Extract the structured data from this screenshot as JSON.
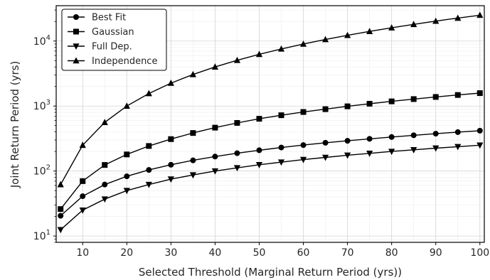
{
  "chart_data": {
    "type": "line",
    "xlabel": "Selected Threshold (Marginal Return Period (yrs))",
    "ylabel": "Joint Return Period (yrs)",
    "x": [
      5,
      10,
      15,
      20,
      25,
      30,
      35,
      40,
      45,
      50,
      55,
      60,
      65,
      70,
      75,
      80,
      85,
      90,
      95,
      100
    ],
    "xlim": [
      4,
      101
    ],
    "ylim": [
      8,
      35000
    ],
    "yscale": "log",
    "xticks": [
      10,
      20,
      30,
      40,
      50,
      60,
      70,
      80,
      90,
      100
    ],
    "yticks": [
      {
        "value": 10,
        "base": "10",
        "exp": "1"
      },
      {
        "value": 100,
        "base": "10",
        "exp": "2"
      },
      {
        "value": 1000,
        "base": "10",
        "exp": "3"
      },
      {
        "value": 10000,
        "base": "10",
        "exp": "4"
      }
    ],
    "grid": true,
    "legend": "top-left",
    "series": [
      {
        "name": "Best Fit",
        "marker": "circle",
        "values": [
          20.5,
          41,
          62,
          83,
          104,
          125,
          146,
          167,
          188,
          209,
          230,
          251,
          272,
          292,
          313,
          334,
          355,
          376,
          397,
          418
        ]
      },
      {
        "name": "Gaussian",
        "marker": "square",
        "values": [
          26,
          70,
          124,
          180,
          243,
          310,
          385,
          465,
          550,
          637,
          722,
          810,
          895,
          990,
          1085,
          1180,
          1280,
          1380,
          1480,
          1580
        ]
      },
      {
        "name": "Full Dep.",
        "marker": "triangle-down",
        "values": [
          12.5,
          25,
          37,
          50,
          62,
          75,
          87,
          100,
          112,
          125,
          137,
          150,
          162,
          175,
          187,
          200,
          212,
          225,
          237,
          250
        ]
      },
      {
        "name": "Independence",
        "marker": "triangle-up",
        "values": [
          62,
          250,
          560,
          1000,
          1560,
          2250,
          3060,
          4000,
          5060,
          6250,
          7560,
          9000,
          10560,
          12250,
          14060,
          16000,
          18060,
          20250,
          22560,
          25000
        ]
      }
    ]
  }
}
